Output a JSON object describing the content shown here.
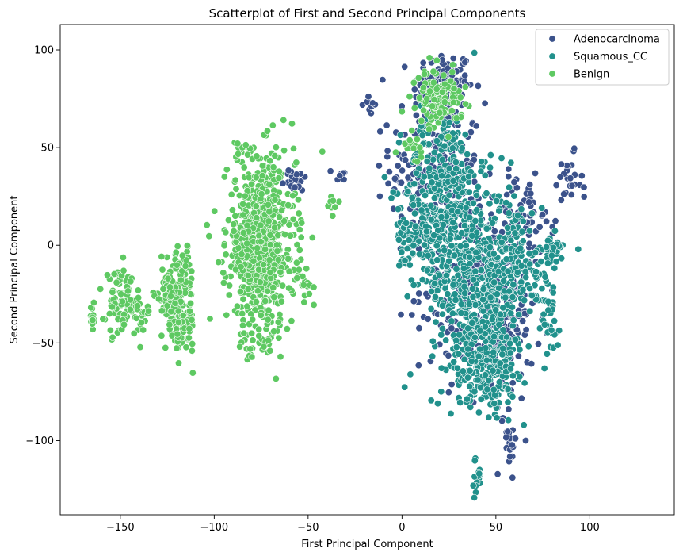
{
  "chart_data": {
    "type": "scatter",
    "title": "Scatterplot of First and Second Principal Components",
    "xlabel": "First Principal Component",
    "ylabel": "Second Principal Component",
    "xlim": [
      -182,
      145
    ],
    "ylim": [
      -138,
      113
    ],
    "xticks": [
      -150,
      -100,
      -50,
      0,
      50,
      100
    ],
    "yticks": [
      -100,
      -50,
      0,
      50,
      100
    ],
    "xtick_labels": [
      "−150",
      "−100",
      "−50",
      "0",
      "50",
      "100"
    ],
    "ytick_labels": [
      "−100",
      "−50",
      "0",
      "50",
      "100"
    ],
    "grid": false,
    "legend_position": "top-right",
    "series": [
      {
        "name": "Adenocarcinoma",
        "color": "#3b528b",
        "clusters": [
          {
            "cx": 22,
            "cy": 80,
            "sx": 8,
            "sy": 10,
            "n": 140
          },
          {
            "cx": 18,
            "cy": 40,
            "sx": 12,
            "sy": 18,
            "n": 200
          },
          {
            "cx": 38,
            "cy": -20,
            "sx": 14,
            "sy": 22,
            "n": 260
          },
          {
            "cx": 55,
            "cy": -40,
            "sx": 8,
            "sy": 20,
            "n": 120
          },
          {
            "cx": 65,
            "cy": 15,
            "sx": 8,
            "sy": 10,
            "n": 60
          },
          {
            "cx": 88,
            "cy": 30,
            "sx": 4,
            "sy": 8,
            "n": 25
          },
          {
            "cx": -57,
            "cy": 33,
            "sx": 3,
            "sy": 3,
            "n": 20
          },
          {
            "cx": -33,
            "cy": 35,
            "sx": 2,
            "sy": 3,
            "n": 8
          },
          {
            "cx": -18,
            "cy": 73,
            "sx": 3,
            "sy": 3,
            "n": 10
          },
          {
            "cx": 57,
            "cy": -98,
            "sx": 2,
            "sy": 8,
            "n": 20
          }
        ]
      },
      {
        "name": "Squamous_CC",
        "color": "#21918c",
        "clusters": [
          {
            "cx": 22,
            "cy": 30,
            "sx": 10,
            "sy": 20,
            "n": 300
          },
          {
            "cx": 40,
            "cy": -20,
            "sx": 12,
            "sy": 25,
            "n": 500
          },
          {
            "cx": 45,
            "cy": -60,
            "sx": 8,
            "sy": 12,
            "n": 200
          },
          {
            "cx": 10,
            "cy": 0,
            "sx": 6,
            "sy": 10,
            "n": 80
          },
          {
            "cx": 62,
            "cy": -10,
            "sx": 8,
            "sy": 15,
            "n": 120
          },
          {
            "cx": 80,
            "cy": -5,
            "sx": 5,
            "sy": 5,
            "n": 30
          },
          {
            "cx": 78,
            "cy": -40,
            "sx": 4,
            "sy": 10,
            "n": 30
          },
          {
            "cx": 40,
            "cy": -118,
            "sx": 1,
            "sy": 5,
            "n": 15
          },
          {
            "cx": 1,
            "cy": 8,
            "sx": 1,
            "sy": 3,
            "n": 10
          }
        ]
      },
      {
        "name": "Benign",
        "color": "#5ec962",
        "clusters": [
          {
            "cx": -75,
            "cy": 0,
            "sx": 9,
            "sy": 22,
            "n": 700
          },
          {
            "cx": -118,
            "cy": -38,
            "sx": 4,
            "sy": 8,
            "n": 110
          },
          {
            "cx": -150,
            "cy": -30,
            "sx": 4,
            "sy": 8,
            "n": 70
          },
          {
            "cx": -118,
            "cy": -15,
            "sx": 4,
            "sy": 8,
            "n": 60
          },
          {
            "cx": -140,
            "cy": -35,
            "sx": 3,
            "sy": 5,
            "n": 30
          },
          {
            "cx": -165,
            "cy": -37,
            "sx": 1,
            "sy": 3,
            "n": 15
          },
          {
            "cx": -125,
            "cy": -25,
            "sx": 3,
            "sy": 6,
            "n": 40
          },
          {
            "cx": 20,
            "cy": 75,
            "sx": 6,
            "sy": 7,
            "n": 120
          },
          {
            "cx": 5,
            "cy": 50,
            "sx": 3,
            "sy": 3,
            "n": 15
          },
          {
            "cx": -50,
            "cy": -20,
            "sx": 3,
            "sy": 3,
            "n": 10
          },
          {
            "cx": -37,
            "cy": 22,
            "sx": 2,
            "sy": 3,
            "n": 8
          },
          {
            "cx": -84,
            "cy": 48,
            "sx": 4,
            "sy": 3,
            "n": 12
          },
          {
            "cx": -80,
            "cy": -52,
            "sx": 5,
            "sy": 4,
            "n": 15
          }
        ]
      }
    ]
  }
}
